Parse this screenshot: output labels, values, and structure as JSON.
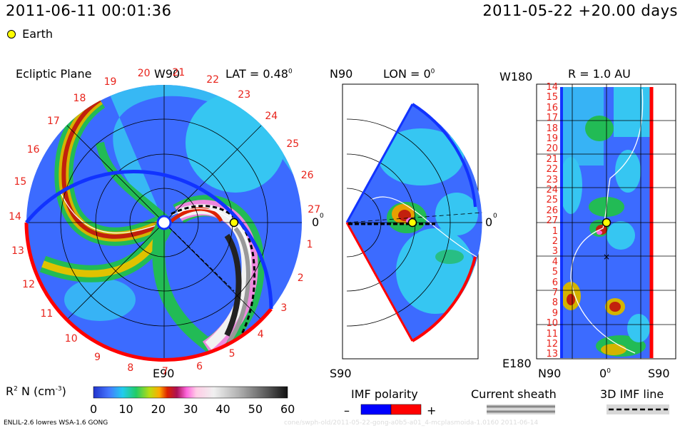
{
  "header": {
    "timestamp": "2011-06-11 00:01:36",
    "run_info": "2011-05-22 +20.00 days",
    "legend_earth": "Earth"
  },
  "ecliptic": {
    "title": "Ecliptic Plane",
    "lat_label": "LAT = 0.48",
    "deg_sup": "0",
    "top_label": "W90",
    "bottom_label": "E90",
    "right_label": "0",
    "carrington_labels": [
      "20",
      "21",
      "22",
      "23",
      "24",
      "25",
      "26",
      "27",
      "1",
      "2",
      "3",
      "4",
      "5",
      "6",
      "7",
      "8",
      "9",
      "10",
      "11",
      "12",
      "13",
      "14",
      "15",
      "16",
      "17",
      "18",
      "19"
    ]
  },
  "meridional": {
    "north_label": "N90",
    "south_label": "S90",
    "lon_label": "LON = 0",
    "deg_sup": "0",
    "right_label": "0"
  },
  "rmap": {
    "title": "R = 1.0 AU",
    "top_label": "W180",
    "bottom_label": "E180",
    "x_labels": [
      "N90",
      "0",
      "S90"
    ],
    "deg_sup": "0",
    "y_labels": [
      "14",
      "15",
      "16",
      "17",
      "18",
      "19",
      "20",
      "21",
      "22",
      "23",
      "24",
      "25",
      "26",
      "27",
      "1",
      "2",
      "3",
      "4",
      "5",
      "6",
      "7",
      "8",
      "9",
      "10",
      "11",
      "12",
      "13"
    ]
  },
  "colorbar": {
    "label_main": "R",
    "label_sup1": "2",
    "label_mid": " N (cm",
    "label_sup2": "-3",
    "label_end": ")",
    "ticks": [
      "0",
      "10",
      "20",
      "30",
      "40",
      "50",
      "60"
    ],
    "range": [
      0,
      60
    ]
  },
  "legends": {
    "imf_title": "IMF polarity",
    "imf_minus": "–",
    "imf_plus": "+",
    "current_sheath": "Current sheath",
    "imf_line": "3D IMF line"
  },
  "footer": {
    "model": "ENLIL-2.6 lowres WSA-1.6 GONG",
    "watermark": "cone/swph-old/2011-05-22-gong-a0b5-a01_4-mcplasmoida-1.0160 2011-06-14"
  },
  "colors": {
    "positive_polarity": "#ff0000",
    "negative_polarity": "#0000ff",
    "earth": "#ffff00",
    "label_red": "#e8231b"
  }
}
